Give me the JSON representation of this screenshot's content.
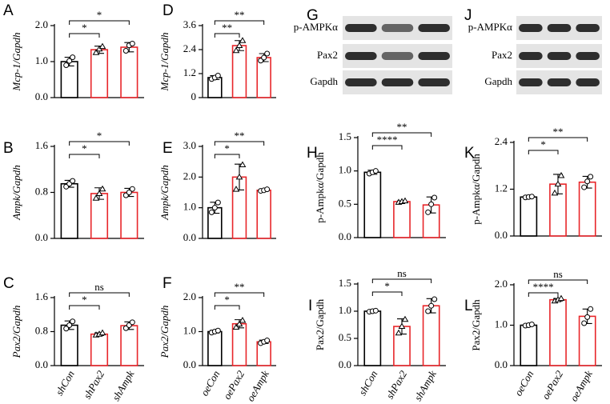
{
  "chart_data": [
    {
      "type": "bar",
      "panel": "A",
      "ylabel": "Mcp-1/Gapdh",
      "categories": [
        null,
        null,
        null
      ],
      "values": [
        1.0,
        1.33,
        1.4
      ],
      "errors": [
        0.12,
        0.1,
        0.13
      ],
      "points": [
        [
          0.9,
          1.02,
          1.12
        ],
        [
          1.25,
          1.35,
          1.42
        ],
        [
          1.3,
          1.45,
          1.5
        ]
      ],
      "bar_colors": [
        "#000000",
        "#e8262a",
        "#e8262a"
      ],
      "ylim": [
        0,
        2
      ],
      "yticks": [
        {
          "value": 0,
          "label": "0.0"
        },
        {
          "value": 1,
          "label": "1.0"
        },
        {
          "value": 2,
          "label": "2.0"
        }
      ],
      "significance": [
        "*",
        "*"
      ]
    },
    {
      "type": "bar",
      "panel": "D",
      "ylabel": "Mcp-1/Gapdh",
      "categories": [
        null,
        null,
        null
      ],
      "values": [
        1.0,
        2.6,
        2.0
      ],
      "errors": [
        0.1,
        0.25,
        0.2
      ],
      "points": [
        [
          0.93,
          1.0,
          1.1
        ],
        [
          2.35,
          2.6,
          2.85
        ],
        [
          1.85,
          2.0,
          2.2
        ]
      ],
      "bar_colors": [
        "#000000",
        "#e8262a",
        "#e8262a"
      ],
      "ylim": [
        0,
        3.6
      ],
      "yticks": [
        0,
        1.2,
        2.4,
        3.6
      ],
      "significance": [
        "**",
        "**"
      ]
    },
    {
      "type": "bar",
      "panel": "B",
      "ylabel": "Ampk/Gapdh",
      "categories": [
        null,
        null,
        null
      ],
      "values": [
        0.95,
        0.78,
        0.8
      ],
      "errors": [
        0.06,
        0.1,
        0.07
      ],
      "points": [
        [
          0.9,
          0.95,
          1.0
        ],
        [
          0.7,
          0.78,
          0.86
        ],
        [
          0.75,
          0.8,
          0.86
        ]
      ],
      "bar_colors": [
        "#000000",
        "#e8262a",
        "#e8262a"
      ],
      "ylim": [
        0,
        1.6
      ],
      "yticks": [
        {
          "value": 0,
          "label": "0.0"
        },
        0.8,
        1.6
      ],
      "significance": [
        "*",
        "*"
      ]
    },
    {
      "type": "bar",
      "panel": "E",
      "ylabel": "Ampk/Gapdh",
      "categories": [
        null,
        null,
        null
      ],
      "values": [
        1.0,
        2.0,
        1.57
      ],
      "errors": [
        0.18,
        0.42,
        0.03
      ],
      "points": [
        [
          0.85,
          1.0,
          1.17
        ],
        [
          1.6,
          2.0,
          2.4
        ],
        [
          1.55,
          1.57,
          1.6
        ]
      ],
      "bar_colors": [
        "#000000",
        "#e8262a",
        "#e8262a"
      ],
      "ylim": [
        0,
        3
      ],
      "yticks": [
        {
          "value": 0,
          "label": "0.0"
        },
        {
          "value": 1,
          "label": "1.0"
        },
        {
          "value": 2,
          "label": "2.0"
        },
        {
          "value": 3,
          "label": "3.0"
        }
      ],
      "significance": [
        "*",
        "**"
      ]
    },
    {
      "type": "bar",
      "panel": "C",
      "ylabel": "Pax2/Gapdh",
      "categories": [
        "shCon",
        "shPax2",
        "shAmpk"
      ],
      "values": [
        0.95,
        0.74,
        0.94
      ],
      "errors": [
        0.1,
        0.03,
        0.09
      ],
      "points": [
        [
          0.87,
          0.95,
          1.04
        ],
        [
          0.72,
          0.74,
          0.77
        ],
        [
          0.88,
          0.95,
          1.02
        ]
      ],
      "bar_colors": [
        "#000000",
        "#e8262a",
        "#e8262a"
      ],
      "ylim": [
        0,
        1.6
      ],
      "yticks": [
        {
          "value": 0,
          "label": "0.0"
        },
        0.8,
        1.6
      ],
      "significance": [
        "*",
        "ns"
      ]
    },
    {
      "type": "bar",
      "panel": "F",
      "ylabel": "Pax2/Gapdh",
      "categories": [
        "oeCon",
        "oePax2",
        "oeAmpk"
      ],
      "values": [
        1.0,
        1.23,
        0.7
      ],
      "errors": [
        0.04,
        0.12,
        0.05
      ],
      "points": [
        [
          0.97,
          1.0,
          1.03
        ],
        [
          1.13,
          1.22,
          1.33
        ],
        [
          0.66,
          0.7,
          0.74
        ]
      ],
      "bar_colors": [
        "#000000",
        "#e8262a",
        "#e8262a"
      ],
      "ylim": [
        0,
        2
      ],
      "yticks": [
        {
          "value": 0,
          "label": "0.0"
        },
        {
          "value": 1,
          "label": "1.0"
        },
        {
          "value": 2,
          "label": "2.0"
        }
      ],
      "significance": [
        "*",
        "**"
      ]
    },
    {
      "type": "bar",
      "panel": "H",
      "ylabel": "p-Ampkα/Gapdh",
      "categories": [
        null,
        null,
        null
      ],
      "values": [
        0.98,
        0.54,
        0.49
      ],
      "errors": [
        0.03,
        0.01,
        0.12
      ],
      "points": [
        [
          0.96,
          0.98,
          1.0
        ],
        [
          0.53,
          0.54,
          0.55
        ],
        [
          0.38,
          0.5,
          0.6
        ]
      ],
      "bar_colors": [
        "#000000",
        "#e8262a",
        "#e8262a"
      ],
      "ylim": [
        0,
        1.5
      ],
      "yticks": [
        {
          "value": 0,
          "label": "0.0"
        },
        0.5,
        {
          "value": 1,
          "label": "1.0"
        },
        1.5
      ],
      "significance": [
        "****",
        "**"
      ]
    },
    {
      "type": "bar",
      "panel": "K",
      "ylabel": "p-Ampkα/Gapdh",
      "categories": [
        null,
        null,
        null
      ],
      "values": [
        1.0,
        1.33,
        1.38
      ],
      "errors": [
        0.01,
        0.25,
        0.15
      ],
      "points": [
        [
          0.99,
          1.0,
          1.01
        ],
        [
          1.1,
          1.33,
          1.55
        ],
        [
          1.25,
          1.4,
          1.52
        ]
      ],
      "bar_colors": [
        "#000000",
        "#e8262a",
        "#e8262a"
      ],
      "ylim": [
        0,
        2.4
      ],
      "yticks": [
        {
          "value": 0,
          "label": "0.0"
        },
        1.2,
        2.4
      ],
      "significance": [
        "*",
        "**"
      ]
    },
    {
      "type": "bar",
      "panel": "I",
      "ylabel": "Pax2/Gapdh",
      "categories": [
        "shCon",
        "shPax2",
        "shAmpk"
      ],
      "values": [
        1.0,
        0.72,
        1.1
      ],
      "errors": [
        0.01,
        0.14,
        0.13
      ],
      "points": [
        [
          0.99,
          1.0,
          1.01
        ],
        [
          0.6,
          0.72,
          0.85
        ],
        [
          1.0,
          1.1,
          1.22
        ]
      ],
      "bar_colors": [
        "#000000",
        "#e8262a",
        "#e8262a"
      ],
      "ylim": [
        0,
        1.5
      ],
      "yticks": [
        {
          "value": 0,
          "label": "0.0"
        },
        0.5,
        {
          "value": 1,
          "label": "1.0"
        },
        1.5
      ],
      "significance": [
        "*",
        "ns"
      ]
    },
    {
      "type": "bar",
      "panel": "L",
      "ylabel": "Pax2/Gapdh",
      "categories": [
        "oeCon",
        "oePax2",
        "oeAmpk"
      ],
      "values": [
        1.0,
        1.63,
        1.22
      ],
      "errors": [
        0.02,
        0.03,
        0.18
      ],
      "points": [
        [
          0.99,
          1.0,
          1.02
        ],
        [
          1.6,
          1.63,
          1.66
        ],
        [
          1.05,
          1.2,
          1.4
        ]
      ],
      "bar_colors": [
        "#000000",
        "#e8262a",
        "#e8262a"
      ],
      "ylim": [
        0,
        2
      ],
      "yticks": [
        {
          "value": 0,
          "label": "0.0"
        },
        {
          "value": 1,
          "label": "1.0"
        },
        {
          "value": 2,
          "label": "2.0"
        }
      ],
      "significance": [
        "****",
        "ns"
      ]
    }
  ],
  "blots": [
    {
      "panel": "G",
      "labels": [
        "p-AMPKα",
        "Pax2",
        "Gapdh"
      ]
    },
    {
      "panel": "J",
      "labels": [
        "p-AMPKα",
        "Pax2",
        "Gapdh"
      ]
    }
  ]
}
